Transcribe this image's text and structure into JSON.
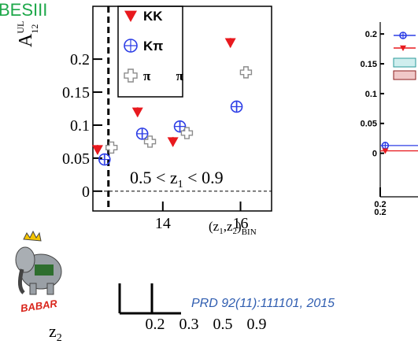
{
  "heading": "BESIII",
  "chart_data": [
    {
      "type": "scatter",
      "axis_title": {
        "y": {
          "main": "A",
          "sup": "UL",
          "sub": "12"
        },
        "x": {
          "main": "(z",
          "sub1": "1",
          "mid": ",z",
          "sub2": "2",
          "end": ")",
          "sub3": "BIN"
        }
      },
      "annotation": {
        "left": "0.5 < z",
        "sub": "1",
        "right": " < 0.9"
      },
      "xlim": [
        12.2,
        16.8
      ],
      "ylim": [
        -0.03,
        0.28
      ],
      "xticks": [
        14,
        16
      ],
      "yticks": [
        0,
        0.05,
        0.1,
        0.15,
        0.2
      ],
      "cut_x": 12.6,
      "series": [
        {
          "name": "KK",
          "color": "#e8191e",
          "marker": "triangle",
          "x": [
            12.32,
            13.35,
            14.26,
            15.74
          ],
          "values": [
            0.063,
            0.12,
            0.075,
            0.225
          ]
        },
        {
          "name": "Kπ",
          "color": "#2d3ee6",
          "marker": "circle",
          "x": [
            12.5,
            13.47,
            14.44,
            15.9
          ],
          "values": [
            0.048,
            0.087,
            0.098,
            0.128
          ]
        },
        {
          "name": "π π",
          "color": "#8c8c8c",
          "marker": "cross",
          "x": [
            12.68,
            13.67,
            14.62,
            16.14
          ],
          "values": [
            0.066,
            0.075,
            0.088,
            0.18
          ]
        }
      ]
    },
    {
      "type": "scatter",
      "xlim": [
        0.2,
        0.35
      ],
      "ylim": [
        -0.073,
        0.22
      ],
      "xticks": [
        0.2
      ],
      "secondary_xticks": [
        0.2
      ],
      "yticks": [
        0,
        0.05,
        0.1,
        0.15,
        0.2
      ],
      "series": [
        {
          "color": "#2d3ee6",
          "marker": "circle",
          "x": [
            0.22
          ],
          "values": [
            0.013
          ]
        },
        {
          "color": "#e8191e",
          "marker": "triangle",
          "x": [
            0.22
          ],
          "values": [
            0.004
          ]
        }
      ]
    }
  ],
  "citation": "PRD 92(11):111101, 2015",
  "logo_text": "BABAR",
  "z2_bins": {
    "label": "z",
    "sub": "2",
    "values": [
      0.2,
      0.3,
      0.5,
      0.9
    ]
  }
}
